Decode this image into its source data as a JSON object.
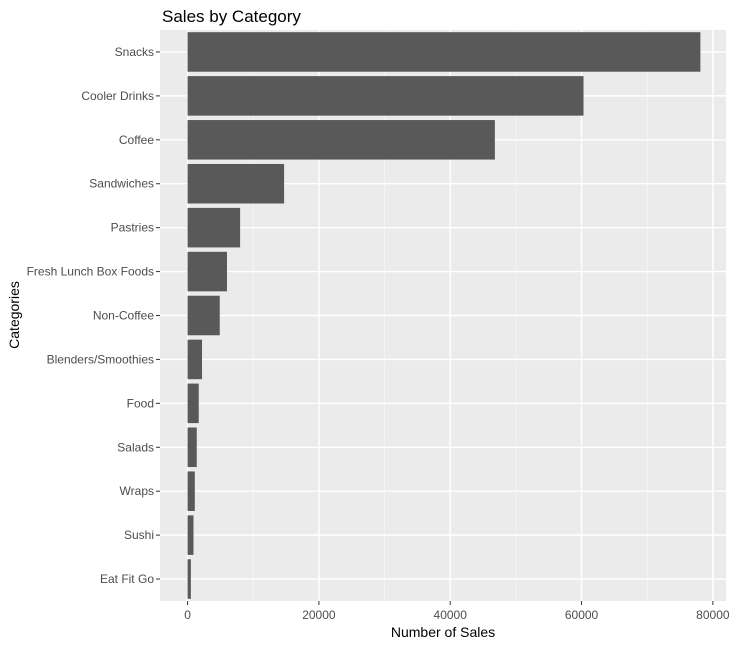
{
  "chart_data": {
    "type": "bar",
    "orientation": "horizontal",
    "title": "Sales by Category",
    "xlabel": "Number of Sales",
    "ylabel": "Categories",
    "categories": [
      "Snacks",
      "Cooler Drinks",
      "Coffee",
      "Sandwiches",
      "Pastries",
      "Fresh Lunch Box Foods",
      "Non-Coffee",
      "Blenders/Smoothies",
      "Food",
      "Salads",
      "Wraps",
      "Sushi",
      "Eat Fit Go"
    ],
    "values": [
      78100,
      60300,
      46800,
      14700,
      8000,
      6000,
      4900,
      2200,
      1700,
      1400,
      1100,
      900,
      500
    ],
    "xlim": [
      -4200,
      82000
    ],
    "xticks": [
      0,
      20000,
      40000,
      60000,
      80000
    ],
    "xtick_labels": [
      "0",
      "20000",
      "40000",
      "60000",
      "80000"
    ],
    "grid": true,
    "legend": "none",
    "colors": {
      "bar": "#595959",
      "panel": "#EBEBEB",
      "grid_major": "#FFFFFF",
      "text": "#000000",
      "tick_label": "#4D4D4D",
      "tick_mark": "#333333"
    }
  }
}
